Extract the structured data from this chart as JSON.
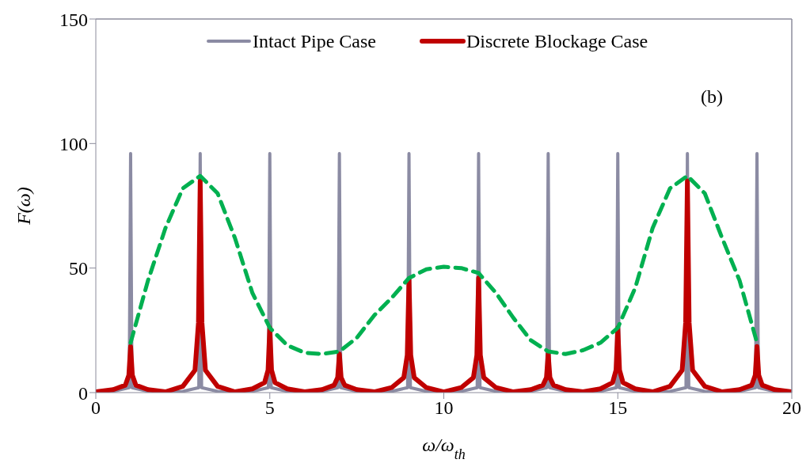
{
  "chart_data": {
    "type": "line",
    "xlabel": "ω/ω$_{th}$",
    "ylabel": "F(ω)",
    "annotations": [
      "(b)"
    ],
    "xlim": [
      0,
      20
    ],
    "xticks": [
      0,
      5,
      10,
      15,
      20
    ],
    "ylim": [
      0,
      150
    ],
    "yticks": [
      0,
      50,
      100,
      150
    ],
    "legend": "top",
    "marker": "none",
    "series": [
      {
        "name": "Intact Pipe Case",
        "color": "#8b8ba3",
        "line_style": "solid",
        "x": [
          0,
          0.5,
          0.96,
          1,
          1.04,
          1.5,
          2,
          2.5,
          2.96,
          3,
          3.04,
          3.5,
          4,
          4.5,
          4.96,
          5,
          5.04,
          5.5,
          6,
          6.5,
          6.96,
          7,
          7.04,
          7.5,
          8,
          8.5,
          8.96,
          9,
          9.04,
          9.5,
          10,
          10.5,
          10.96,
          11,
          11.04,
          11.5,
          12,
          12.5,
          12.96,
          13,
          13.04,
          13.5,
          14,
          14.5,
          14.96,
          15,
          15.04,
          15.5,
          16,
          16.5,
          16.96,
          17,
          17.04,
          17.5,
          18,
          18.5,
          18.96,
          19,
          19.04,
          19.5,
          20
        ],
        "values": [
          0.2,
          0.5,
          2,
          96,
          2,
          0.5,
          0.2,
          0.5,
          2,
          96,
          2,
          0.5,
          0.2,
          0.5,
          2,
          96,
          2,
          0.5,
          0.2,
          0.5,
          2,
          96,
          2,
          0.5,
          0.2,
          0.5,
          2,
          96,
          2,
          0.5,
          0.2,
          0.5,
          2,
          96,
          2,
          0.5,
          0.2,
          0.5,
          2,
          96,
          2,
          0.5,
          0.2,
          0.5,
          2,
          96,
          2,
          0.5,
          0.2,
          0.5,
          2,
          96,
          2,
          0.5,
          0.2,
          0.5,
          2,
          96,
          2,
          0.5,
          0.2
        ]
      },
      {
        "name": "Discrete Blockage Case",
        "color": "#c00000",
        "line_style": "solid",
        "x": [
          0,
          0.5,
          0.85,
          0.95,
          1,
          1.05,
          1.15,
          1.5,
          2,
          2.5,
          2.85,
          2.95,
          3,
          3.05,
          3.15,
          3.5,
          4,
          4.5,
          4.85,
          4.95,
          5,
          5.05,
          5.15,
          5.5,
          6,
          6.5,
          6.85,
          6.95,
          7,
          7.05,
          7.15,
          7.5,
          8,
          8.5,
          8.85,
          8.95,
          9,
          9.05,
          9.15,
          9.5,
          10,
          10.5,
          10.85,
          10.95,
          11,
          11.05,
          11.15,
          11.5,
          12,
          12.5,
          12.85,
          12.95,
          13,
          13.05,
          13.15,
          13.5,
          14,
          14.5,
          14.85,
          14.95,
          15,
          15.05,
          15.15,
          15.5,
          16,
          16.5,
          16.85,
          16.95,
          17,
          17.05,
          17.15,
          17.5,
          18,
          18.5,
          18.85,
          18.95,
          19,
          19.05,
          19.15,
          19.5,
          20
        ],
        "values": [
          0.3,
          1.2,
          3,
          7,
          18.5,
          7,
          3,
          1.2,
          0.3,
          2.5,
          9,
          28,
          85,
          28,
          9,
          2.5,
          0.3,
          1.5,
          4,
          9,
          26,
          9,
          4,
          1.5,
          0.3,
          1.2,
          3,
          6,
          15.5,
          6,
          3,
          1.2,
          0.3,
          2,
          6,
          15,
          45.5,
          15,
          6,
          2,
          0.3,
          2,
          6,
          15,
          46,
          15,
          6,
          2,
          0.3,
          1.2,
          3,
          6,
          15.5,
          6,
          3,
          1.2,
          0.3,
          1.5,
          4,
          9,
          26,
          9,
          4,
          1.5,
          0.3,
          2.5,
          9,
          28,
          85,
          28,
          9,
          2.5,
          0.3,
          1.2,
          3,
          7,
          18.5,
          7,
          3,
          1.2,
          0.3
        ]
      },
      {
        "color": "#00b050",
        "line_style": "dashed",
        "x": [
          1,
          1.5,
          2,
          2.5,
          3,
          3.5,
          4,
          4.5,
          5,
          5.5,
          6,
          6.5,
          7,
          7.5,
          8,
          8.5,
          9,
          9.5,
          10,
          10.5,
          11,
          11.5,
          12,
          12.5,
          13,
          13.5,
          14,
          14.5,
          15,
          15.5,
          16,
          16.5,
          17,
          17.5,
          18,
          18.5,
          19
        ],
        "values": [
          20,
          45,
          66,
          82,
          87,
          80,
          62,
          40,
          26,
          19,
          16,
          15.5,
          16.5,
          22,
          31,
          38,
          46,
          49.5,
          50.5,
          50,
          48,
          40,
          30,
          21,
          16.5,
          15.5,
          17,
          20,
          26,
          42,
          66,
          82,
          87,
          80,
          62,
          45,
          20
        ]
      }
    ]
  }
}
